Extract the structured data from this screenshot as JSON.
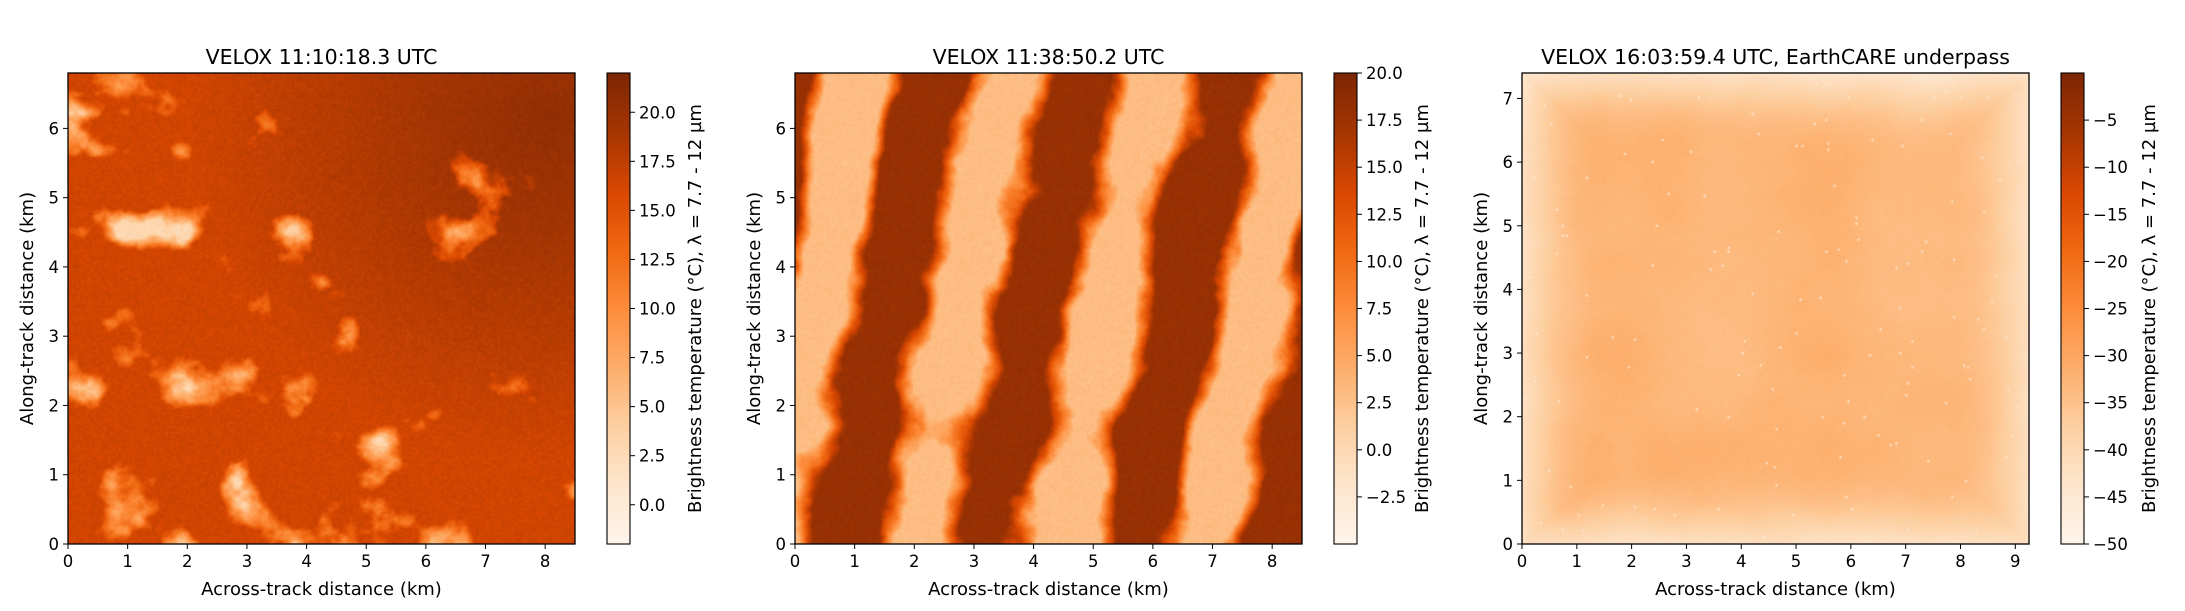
{
  "chart_data": [
    {
      "type": "heatmap",
      "title": "VELOX 11:10:18.3 UTC",
      "xlabel": "Across-track distance (km)",
      "ylabel": "Along-track distance (km)",
      "xlim": [
        0,
        8.5
      ],
      "ylim": [
        0,
        6.8
      ],
      "xticks": [
        0,
        1,
        2,
        3,
        4,
        5,
        6,
        7,
        8
      ],
      "yticks": [
        0,
        1,
        2,
        3,
        4,
        5,
        6
      ],
      "colorbar": {
        "label": "Brightness temperature (°C), λ = 7.7 - 12 µm",
        "range": [
          -2,
          22
        ],
        "ticks": [
          "0.0",
          "2.5",
          "5.0",
          "7.5",
          "10.0",
          "12.5",
          "15.0",
          "17.5",
          "20.0"
        ],
        "tick_values": [
          0,
          2.5,
          5,
          7.5,
          10,
          12.5,
          15,
          17.5,
          20
        ],
        "colormap": "Oranges"
      },
      "field": {
        "pattern": "broken cumulus cells, warm sea surface dominant",
        "base_value": 16.5,
        "cloud_value": 3.0,
        "cloud_fraction": 0.45,
        "warm_region": "upper-right"
      }
    },
    {
      "type": "heatmap",
      "title": "VELOX 11:38:50.2 UTC",
      "xlabel": "Across-track distance (km)",
      "ylabel": "Along-track distance (km)",
      "xlim": [
        0,
        8.5
      ],
      "ylim": [
        0,
        6.8
      ],
      "xticks": [
        0,
        1,
        2,
        3,
        4,
        5,
        6,
        7,
        8
      ],
      "yticks": [
        0,
        1,
        2,
        3,
        4,
        5,
        6
      ],
      "colorbar": {
        "label": "Brightness temperature (°C), λ = 7.7 - 12 µm",
        "range": [
          -5,
          20
        ],
        "ticks": [
          "−2.5",
          "0.0",
          "2.5",
          "5.0",
          "7.5",
          "10.0",
          "12.5",
          "15.0",
          "17.5",
          "20.0"
        ],
        "tick_values": [
          -2.5,
          0,
          2.5,
          5,
          7.5,
          10,
          12.5,
          15,
          17.5,
          20
        ],
        "colormap": "Oranges"
      },
      "field": {
        "pattern": "diagonal cloud streets separated by warm clear-sky bands",
        "base_value": 15.5,
        "cloud_value": 0.5,
        "cloud_fraction": 0.55
      }
    },
    {
      "type": "heatmap",
      "title": "VELOX 16:03:59.4 UTC, EarthCARE underpass",
      "xlabel": "Across-track distance (km)",
      "ylabel": "Along-track distance (km)",
      "xlim": [
        0,
        9.25
      ],
      "ylim": [
        0,
        7.4
      ],
      "xticks": [
        0,
        1,
        2,
        3,
        4,
        5,
        6,
        7,
        8,
        9
      ],
      "yticks": [
        0,
        1,
        2,
        3,
        4,
        5,
        6,
        7
      ],
      "colorbar": {
        "label": "Brightness temperature (°C), λ = 7.7 - 12 µm",
        "range": [
          -50,
          0
        ],
        "ticks": [
          "−50",
          "−45",
          "−40",
          "−35",
          "−30",
          "−25",
          "−20",
          "−15",
          "−10",
          "−5"
        ],
        "tick_values": [
          -50,
          -45,
          -40,
          -35,
          -30,
          -25,
          -20,
          -15,
          -10,
          -5
        ],
        "colormap": "Oranges"
      },
      "field": {
        "pattern": "nearly uniform cold cloud deck with speckle",
        "base_value": -33,
        "edge_value": -45,
        "variation": 2.5
      }
    }
  ]
}
